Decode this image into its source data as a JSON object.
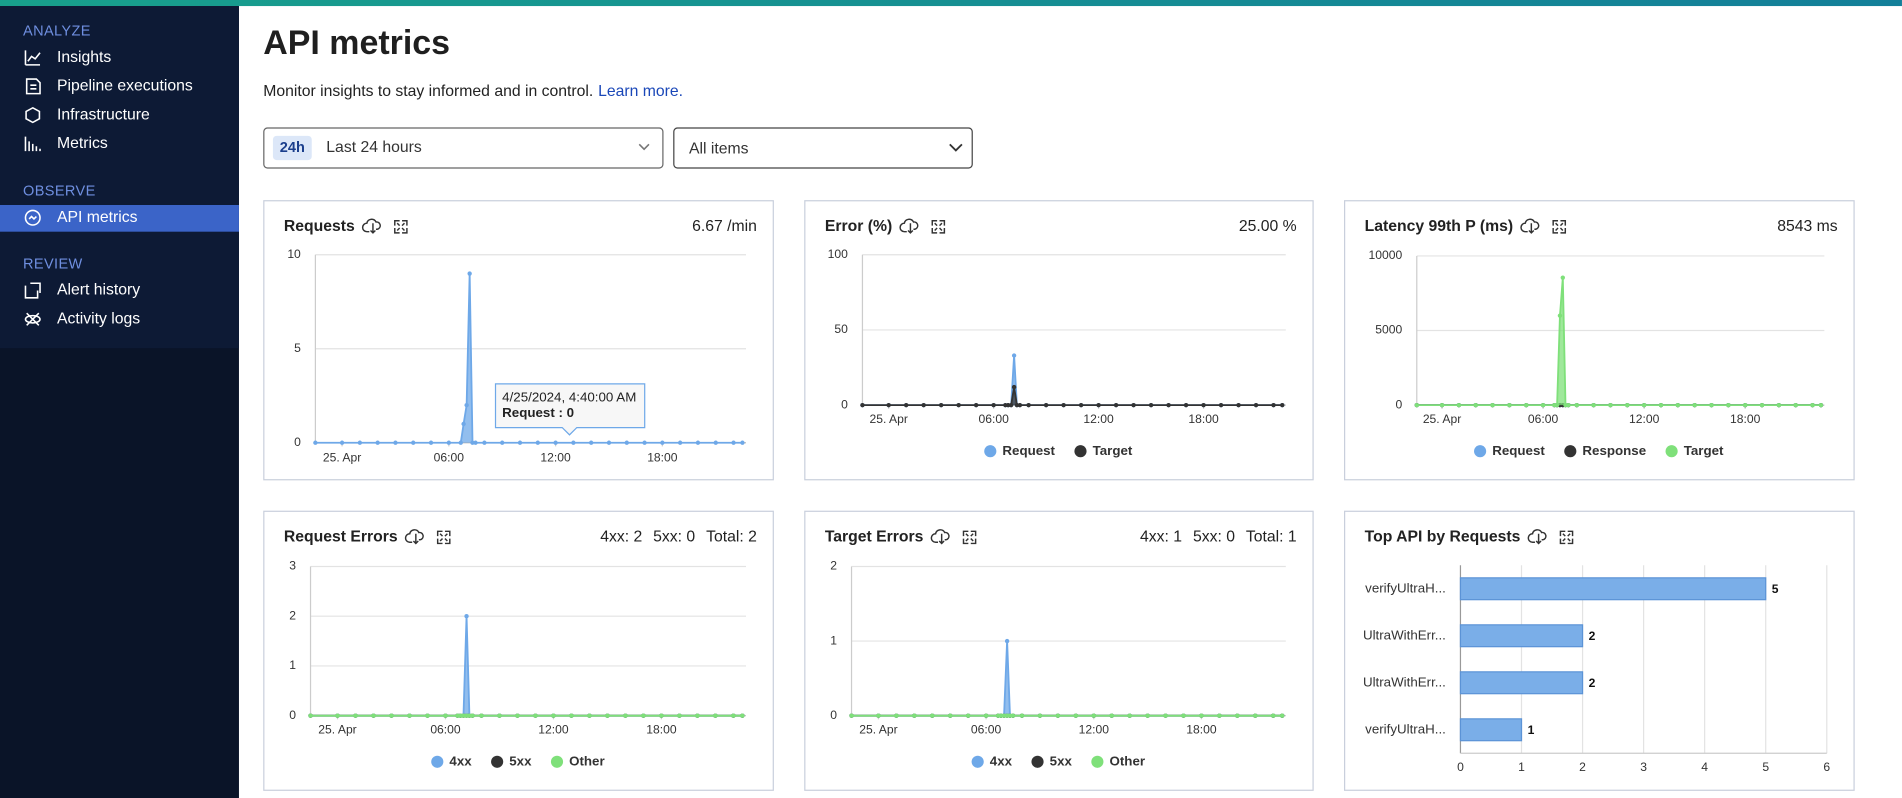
{
  "sidebar": {
    "sections": [
      {
        "title": "ANALYZE",
        "items": [
          "Insights",
          "Pipeline executions",
          "Infrastructure",
          "Metrics"
        ]
      },
      {
        "title": "OBSERVE",
        "items": [
          "API metrics"
        ],
        "active_index": 0
      },
      {
        "title": "REVIEW",
        "items": [
          "Alert history",
          "Activity logs"
        ]
      }
    ]
  },
  "header": {
    "title": "API metrics",
    "description": "Monitor insights to stay informed and in control.",
    "link": "Learn more."
  },
  "filters": {
    "range_badge": "24h",
    "range": "Last 24 hours",
    "items": "All items"
  },
  "chart_data": [
    {
      "type": "area",
      "title": "Requests",
      "summary": [
        "6.67 /min"
      ],
      "legend": false,
      "x": [
        -1.5,
        0,
        1,
        2,
        3,
        4,
        5,
        6,
        6.67,
        6.83,
        7,
        7.17,
        7.33,
        7.5,
        8,
        9,
        10,
        11,
        12,
        13,
        14,
        15,
        16,
        17,
        18,
        19,
        20,
        21,
        22,
        22.5
      ],
      "xlim": [
        -1.5,
        22.7
      ],
      "xticks": [
        {
          "value": 0,
          "label": "25. Apr"
        },
        {
          "value": 6,
          "label": "06:00"
        },
        {
          "value": 12,
          "label": "12:00"
        },
        {
          "value": 18,
          "label": "18:00"
        }
      ],
      "ylim": [
        0,
        10
      ],
      "yticks": [
        0,
        5,
        10
      ],
      "series": [
        {
          "name": "Request",
          "color": "#6ea8e8",
          "values": [
            0,
            0,
            0,
            0,
            0,
            0,
            0,
            0,
            0,
            1,
            2,
            9,
            0,
            0,
            0,
            0,
            0,
            0,
            0,
            0,
            0,
            0,
            0,
            0,
            0,
            0,
            0,
            0,
            0,
            0
          ]
        }
      ],
      "tooltip": {
        "title": "4/25/2024, 4:40:00 AM",
        "text": "Request : 0"
      }
    },
    {
      "type": "area",
      "title": "Error (%)",
      "summary": [
        "25.00 %"
      ],
      "legend": "bottom",
      "x": [
        -1.5,
        0,
        1,
        2,
        3,
        4,
        5,
        6,
        6.67,
        6.83,
        7,
        7.17,
        7.33,
        7.5,
        8,
        9,
        10,
        11,
        12,
        13,
        14,
        15,
        16,
        17,
        18,
        19,
        20,
        21,
        22,
        22.5
      ],
      "xlim": [
        -1.5,
        22.7
      ],
      "xticks": [
        {
          "value": 0,
          "label": "25. Apr"
        },
        {
          "value": 6,
          "label": "06:00"
        },
        {
          "value": 12,
          "label": "12:00"
        },
        {
          "value": 18,
          "label": "18:00"
        }
      ],
      "ylim": [
        0,
        100
      ],
      "yticks": [
        0,
        50,
        100
      ],
      "series": [
        {
          "name": "Request",
          "color": "#6ea8e8",
          "values": [
            0,
            0,
            0,
            0,
            0,
            0,
            0,
            0,
            0,
            0,
            0,
            33,
            0,
            0,
            0,
            0,
            0,
            0,
            0,
            0,
            0,
            0,
            0,
            0,
            0,
            0,
            0,
            0,
            0,
            0
          ]
        },
        {
          "name": "Target",
          "color": "#333333",
          "values": [
            0,
            0,
            0,
            0,
            0,
            0,
            0,
            0,
            0,
            0,
            0,
            12,
            0,
            0,
            0,
            0,
            0,
            0,
            0,
            0,
            0,
            0,
            0,
            0,
            0,
            0,
            0,
            0,
            0,
            0
          ]
        }
      ]
    },
    {
      "type": "area",
      "title": "Latency 99th P (ms)",
      "summary": [
        "8543 ms"
      ],
      "legend": "bottom",
      "x": [
        -1.5,
        0,
        1,
        2,
        3,
        4,
        5,
        6,
        6.67,
        6.83,
        7,
        7.17,
        7.33,
        7.5,
        8,
        9,
        10,
        11,
        12,
        13,
        14,
        15,
        16,
        17,
        18,
        19,
        20,
        21,
        22,
        22.5
      ],
      "xlim": [
        -1.5,
        22.7
      ],
      "xticks": [
        {
          "value": 0,
          "label": "25. Apr"
        },
        {
          "value": 6,
          "label": "06:00"
        },
        {
          "value": 12,
          "label": "12:00"
        },
        {
          "value": 18,
          "label": "18:00"
        }
      ],
      "ylim": [
        0,
        10000
      ],
      "yticks": [
        0,
        5000,
        10000
      ],
      "series": [
        {
          "name": "Request",
          "color": "#6ea8e8",
          "values": [
            0,
            0,
            0,
            0,
            0,
            0,
            0,
            0,
            0,
            0,
            0,
            0,
            0,
            0,
            0,
            0,
            0,
            0,
            0,
            0,
            0,
            0,
            0,
            0,
            0,
            0,
            0,
            0,
            0,
            0
          ]
        },
        {
          "name": "Response",
          "color": "#333333",
          "values": [
            0,
            0,
            0,
            0,
            0,
            0,
            0,
            0,
            0,
            0,
            0,
            0,
            0,
            0,
            0,
            0,
            0,
            0,
            0,
            0,
            0,
            0,
            0,
            0,
            0,
            0,
            0,
            0,
            0,
            0
          ]
        },
        {
          "name": "Target",
          "color": "#7fe07a",
          "values": [
            0,
            0,
            0,
            0,
            0,
            0,
            0,
            0,
            0,
            0,
            6000,
            8543,
            0,
            0,
            0,
            0,
            0,
            0,
            0,
            0,
            0,
            0,
            0,
            0,
            0,
            0,
            0,
            0,
            0,
            0
          ]
        }
      ]
    },
    {
      "type": "area",
      "title": "Request Errors",
      "summary": [
        "4xx: 2",
        "5xx: 0",
        "Total: 2"
      ],
      "legend": "bottom",
      "x": [
        -1.5,
        0,
        1,
        2,
        3,
        4,
        5,
        6,
        6.67,
        6.83,
        7,
        7.17,
        7.33,
        7.5,
        8,
        9,
        10,
        11,
        12,
        13,
        14,
        15,
        16,
        17,
        18,
        19,
        20,
        21,
        22,
        22.5
      ],
      "xlim": [
        -1.5,
        22.7
      ],
      "xticks": [
        {
          "value": 0,
          "label": "25. Apr"
        },
        {
          "value": 6,
          "label": "06:00"
        },
        {
          "value": 12,
          "label": "12:00"
        },
        {
          "value": 18,
          "label": "18:00"
        }
      ],
      "ylim": [
        0,
        3
      ],
      "yticks": [
        0,
        1,
        2,
        3
      ],
      "series": [
        {
          "name": "4xx",
          "color": "#6ea8e8",
          "values": [
            0,
            0,
            0,
            0,
            0,
            0,
            0,
            0,
            0,
            0,
            0,
            2,
            0,
            0,
            0,
            0,
            0,
            0,
            0,
            0,
            0,
            0,
            0,
            0,
            0,
            0,
            0,
            0,
            0,
            0
          ]
        },
        {
          "name": "5xx",
          "color": "#333333",
          "values": [
            0,
            0,
            0,
            0,
            0,
            0,
            0,
            0,
            0,
            0,
            0,
            0,
            0,
            0,
            0,
            0,
            0,
            0,
            0,
            0,
            0,
            0,
            0,
            0,
            0,
            0,
            0,
            0,
            0,
            0
          ]
        },
        {
          "name": "Other",
          "color": "#7fe07a",
          "values": [
            0,
            0,
            0,
            0,
            0,
            0,
            0,
            0,
            0,
            0,
            0,
            0,
            0,
            0,
            0,
            0,
            0,
            0,
            0,
            0,
            0,
            0,
            0,
            0,
            0,
            0,
            0,
            0,
            0,
            0
          ]
        }
      ]
    },
    {
      "type": "area",
      "title": "Target Errors",
      "summary": [
        "4xx: 1",
        "5xx: 0",
        "Total: 1"
      ],
      "legend": "bottom",
      "x": [
        -1.5,
        0,
        1,
        2,
        3,
        4,
        5,
        6,
        6.67,
        6.83,
        7,
        7.17,
        7.33,
        7.5,
        8,
        9,
        10,
        11,
        12,
        13,
        14,
        15,
        16,
        17,
        18,
        19,
        20,
        21,
        22,
        22.5
      ],
      "xlim": [
        -1.5,
        22.7
      ],
      "xticks": [
        {
          "value": 0,
          "label": "25. Apr"
        },
        {
          "value": 6,
          "label": "06:00"
        },
        {
          "value": 12,
          "label": "12:00"
        },
        {
          "value": 18,
          "label": "18:00"
        }
      ],
      "ylim": [
        0,
        2
      ],
      "yticks": [
        0,
        1,
        2
      ],
      "series": [
        {
          "name": "4xx",
          "color": "#6ea8e8",
          "values": [
            0,
            0,
            0,
            0,
            0,
            0,
            0,
            0,
            0,
            0,
            0,
            1,
            0,
            0,
            0,
            0,
            0,
            0,
            0,
            0,
            0,
            0,
            0,
            0,
            0,
            0,
            0,
            0,
            0,
            0
          ]
        },
        {
          "name": "5xx",
          "color": "#333333",
          "values": [
            0,
            0,
            0,
            0,
            0,
            0,
            0,
            0,
            0,
            0,
            0,
            0,
            0,
            0,
            0,
            0,
            0,
            0,
            0,
            0,
            0,
            0,
            0,
            0,
            0,
            0,
            0,
            0,
            0,
            0
          ]
        },
        {
          "name": "Other",
          "color": "#7fe07a",
          "values": [
            0,
            0,
            0,
            0,
            0,
            0,
            0,
            0,
            0,
            0,
            0,
            0,
            0,
            0,
            0,
            0,
            0,
            0,
            0,
            0,
            0,
            0,
            0,
            0,
            0,
            0,
            0,
            0,
            0,
            0
          ]
        }
      ]
    },
    {
      "type": "hbar",
      "title": "Top API by Requests",
      "legend": false,
      "categories": [
        "verifyUltraH...",
        "UltraWithErr...",
        "UltraWithErr...",
        "verifyUltraH..."
      ],
      "values": [
        5,
        2,
        2,
        1
      ],
      "color": "#7aaee8",
      "xlim": [
        0,
        6
      ],
      "xticks": [
        0,
        1,
        2,
        3,
        4,
        5,
        6
      ]
    }
  ]
}
